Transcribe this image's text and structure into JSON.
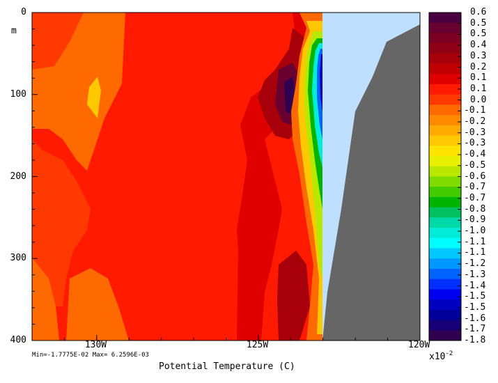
{
  "chart_data": {
    "type": "heatmap",
    "title": "",
    "xlabel": "Potential Temperature (C)",
    "ylabel": "m",
    "x_ticks": [
      "130W",
      "125W",
      "120W"
    ],
    "y_ticks": [
      "0",
      "100",
      "200",
      "300",
      "400"
    ],
    "xlim": [
      "132W",
      "120W"
    ],
    "ylim": [
      400,
      0
    ],
    "colorbar": {
      "multiplier": "x10",
      "exponent": "-2",
      "labels": [
        "0.6",
        "0.5",
        "0.5",
        "0.4",
        "0.3",
        "0.2",
        "0.1",
        "0.1",
        "0.0",
        "-0.1",
        "-0.2",
        "-0.3",
        "-0.3",
        "-0.4",
        "-0.5",
        "-0.6",
        "-0.7",
        "-0.7",
        "-0.8",
        "-0.9",
        "-1.0",
        "-1.1",
        "-1.1",
        "-1.2",
        "-1.3",
        "-1.4",
        "-1.5",
        "-1.5",
        "-1.6",
        "-1.7",
        "-1.8"
      ],
      "colors": [
        "#4a0040",
        "#680030",
        "#7c0022",
        "#900014",
        "#a8000a",
        "#c00000",
        "#e00000",
        "#ff1a00",
        "#ff3a00",
        "#ff6a00",
        "#ff8a00",
        "#ffaa00",
        "#ffc800",
        "#ffe400",
        "#e8f000",
        "#b8e800",
        "#80dc00",
        "#40cc00",
        "#00b400",
        "#00c060",
        "#00d8a8",
        "#00ecd8",
        "#00ffff",
        "#00c8ff",
        "#0098ff",
        "#0064ff",
        "#0030ff",
        "#0000f0",
        "#0000c0",
        "#00009a",
        "#160078",
        "#300050"
      ]
    },
    "stats": "Min=-1.7775E-02  Max= 6.2596E-03",
    "landmask_colors": {
      "land": "#666666",
      "missing": "#bfdfff"
    }
  }
}
